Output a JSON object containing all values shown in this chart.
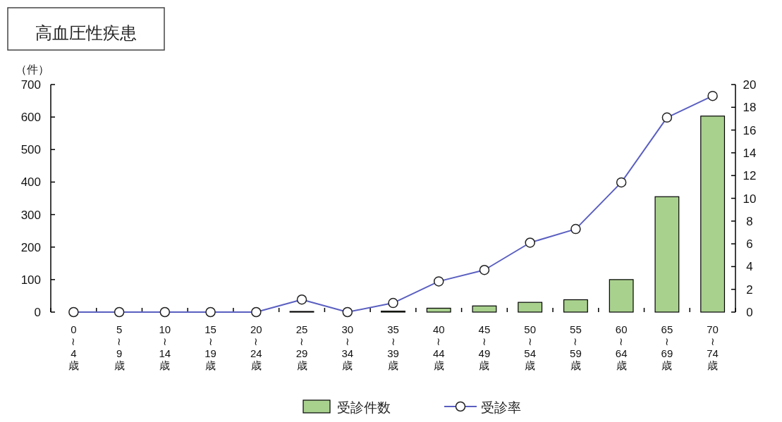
{
  "chart_data": {
    "type": "bar",
    "title": "高血圧性疾患",
    "ylabel": "（件）",
    "categories": [
      "0\n≀\n4\n歳",
      "5\n≀\n9\n歳",
      "10\n≀\n14\n歳",
      "15\n≀\n19\n歳",
      "20\n≀\n24\n歳",
      "25\n≀\n29\n歳",
      "30\n≀\n34\n歳",
      "35\n≀\n39\n歳",
      "40\n≀\n44\n歳",
      "45\n≀\n49\n歳",
      "50\n≀\n54\n歳",
      "55\n≀\n59\n歳",
      "60\n≀\n64\n歳",
      "65\n≀\n69\n歳",
      "70\n≀\n74\n歳"
    ],
    "series": [
      {
        "name": "受診件数",
        "color": "#a9d18e",
        "values": [
          0,
          0,
          0,
          0,
          0,
          2,
          0,
          3,
          12,
          19,
          30,
          38,
          100,
          355,
          603
        ]
      },
      {
        "name": "受診率",
        "type": "line",
        "axis": "y2",
        "color": "#5a5fc0",
        "marker": "circle",
        "values": [
          0,
          0,
          0,
          0,
          0,
          1.1,
          0,
          0.8,
          2.7,
          3.7,
          6.1,
          7.3,
          11.4,
          17.1,
          19.0
        ]
      }
    ],
    "ylim": [
      0,
      700
    ],
    "yticks": [
      0,
      100,
      200,
      300,
      400,
      500,
      600,
      700
    ],
    "y2lim": [
      0,
      20
    ],
    "y2ticks": [
      0,
      2,
      4,
      6,
      8,
      10,
      12,
      14,
      16,
      18,
      20
    ],
    "legend": "bottom",
    "grid": false
  }
}
